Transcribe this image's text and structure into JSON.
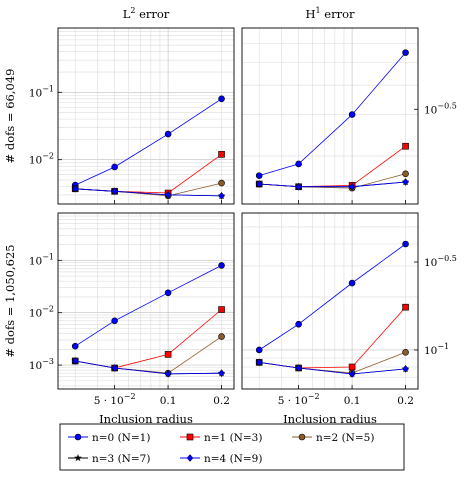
{
  "figure": {
    "col_titles": [
      {
        "base": "L",
        "sup": "2",
        "rest": " error"
      },
      {
        "base": "H",
        "sup": "1",
        "rest": " error"
      }
    ],
    "row_labels": [
      "# dofs = 66,049",
      "# dofs = 1,050,625"
    ],
    "xlabel": "Inclusion radius",
    "xtick_labels": [
      {
        "pre": "5 · 10",
        "sup": "−2",
        "value": 0.05
      },
      {
        "pre": "0.1",
        "sup": "",
        "value": 0.1
      },
      {
        "pre": "0.2",
        "sup": "",
        "value": 0.2
      }
    ],
    "legend": [
      "n=0 (N=1)",
      "n=1 (N=3)",
      "n=2 (N=5)",
      "n=3 (N=7)",
      "n=4 (N=9)"
    ]
  },
  "chart_data": [
    {
      "type": "line",
      "title": "L2 error, # dofs = 66,049",
      "xlabel": "",
      "ylabel": "# dofs = 66,049",
      "yscale": "log",
      "xscale": "log",
      "x": [
        0.03,
        0.05,
        0.1,
        0.2
      ],
      "ylim": [
        0.0022,
        0.9
      ],
      "yticks": [
        {
          "value": 0.01,
          "base": "10",
          "sup": "−2"
        },
        {
          "value": 0.1,
          "base": "10",
          "sup": "−1"
        }
      ],
      "ytick_side": "left",
      "grid": true,
      "series": [
        {
          "name": "n=0 (N=1)",
          "values": [
            0.0042,
            0.0078,
            0.024,
            0.08
          ]
        },
        {
          "name": "n=1 (N=3)",
          "values": [
            0.0037,
            0.0034,
            0.0032,
            0.012
          ]
        },
        {
          "name": "n=2 (N=5)",
          "values": [
            0.0037,
            0.0034,
            0.0029,
            0.0045
          ]
        },
        {
          "name": "n=3 (N=7)",
          "values": [
            0.0037,
            0.0034,
            0.003,
            0.0029
          ]
        },
        {
          "name": "n=4 (N=9)",
          "values": [
            0.0037,
            0.0034,
            0.003,
            0.0029
          ]
        }
      ]
    },
    {
      "type": "line",
      "title": "H1 error, # dofs = 66,049",
      "xlabel": "",
      "ylabel": "",
      "yscale": "log",
      "xscale": "log",
      "x": [
        0.03,
        0.05,
        0.1,
        0.2
      ],
      "ylim": [
        0.125,
        0.7
      ],
      "yticks": [
        {
          "value": 0.316,
          "base": "10",
          "sup": "−0.5"
        }
      ],
      "ytick_side": "right",
      "grid": true,
      "series": [
        {
          "name": "n=0 (N=1)",
          "values": [
            0.165,
            0.185,
            0.3,
            0.55
          ]
        },
        {
          "name": "n=1 (N=3)",
          "values": [
            0.152,
            0.148,
            0.15,
            0.22
          ]
        },
        {
          "name": "n=2 (N=5)",
          "values": [
            0.152,
            0.148,
            0.146,
            0.168
          ]
        },
        {
          "name": "n=3 (N=7)",
          "values": [
            0.152,
            0.148,
            0.148,
            0.155
          ]
        },
        {
          "name": "n=4 (N=9)",
          "values": [
            0.152,
            0.148,
            0.148,
            0.155
          ]
        }
      ]
    },
    {
      "type": "line",
      "title": "L2 error, # dofs = 1,050,625",
      "xlabel": "Inclusion radius",
      "ylabel": "# dofs = 1,050,625",
      "yscale": "log",
      "xscale": "log",
      "x": [
        0.03,
        0.05,
        0.1,
        0.2
      ],
      "ylim": [
        0.00035,
        0.8
      ],
      "yticks": [
        {
          "value": 0.001,
          "base": "10",
          "sup": "−3"
        },
        {
          "value": 0.01,
          "base": "10",
          "sup": "−2"
        },
        {
          "value": 0.1,
          "base": "10",
          "sup": "−1"
        }
      ],
      "ytick_side": "left",
      "grid": true,
      "series": [
        {
          "name": "n=0 (N=1)",
          "values": [
            0.0023,
            0.007,
            0.024,
            0.08
          ]
        },
        {
          "name": "n=1 (N=3)",
          "values": [
            0.0012,
            0.00088,
            0.0016,
            0.0115
          ]
        },
        {
          "name": "n=2 (N=5)",
          "values": [
            0.0012,
            0.00088,
            0.0007,
            0.0035
          ]
        },
        {
          "name": "n=3 (N=7)",
          "values": [
            0.0012,
            0.00088,
            0.00068,
            0.0007
          ]
        },
        {
          "name": "n=4 (N=9)",
          "values": [
            0.0012,
            0.00088,
            0.00068,
            0.0007
          ]
        }
      ]
    },
    {
      "type": "line",
      "title": "H1 error, # dofs = 1,050,625",
      "xlabel": "Inclusion radius",
      "ylabel": "",
      "yscale": "log",
      "xscale": "log",
      "x": [
        0.03,
        0.05,
        0.1,
        0.2
      ],
      "ylim": [
        0.06,
        0.6
      ],
      "yticks": [
        {
          "value": 0.1,
          "base": "10",
          "sup": "−1"
        },
        {
          "value": 0.316,
          "base": "10",
          "sup": "−0.5"
        }
      ],
      "ytick_side": "right",
      "grid": true,
      "series": [
        {
          "name": "n=0 (N=1)",
          "values": [
            0.1,
            0.14,
            0.24,
            0.4
          ]
        },
        {
          "name": "n=1 (N=3)",
          "values": [
            0.085,
            0.079,
            0.08,
            0.175
          ]
        },
        {
          "name": "n=2 (N=5)",
          "values": [
            0.085,
            0.079,
            0.074,
            0.097
          ]
        },
        {
          "name": "n=3 (N=7)",
          "values": [
            0.085,
            0.079,
            0.073,
            0.078
          ]
        },
        {
          "name": "n=4 (N=9)",
          "values": [
            0.085,
            0.079,
            0.073,
            0.078
          ]
        }
      ]
    }
  ],
  "series_styles": [
    {
      "name": "n=0 (N=1)",
      "color": "#0000ff",
      "marker": "circle"
    },
    {
      "name": "n=1 (N=3)",
      "color": "#ff0000",
      "marker": "square"
    },
    {
      "name": "n=2 (N=5)",
      "color": "#8b5a2b",
      "marker": "circle"
    },
    {
      "name": "n=3 (N=7)",
      "color": "#000000",
      "marker": "star"
    },
    {
      "name": "n=4 (N=9)",
      "color": "#0000ff",
      "marker": "diamond"
    }
  ]
}
